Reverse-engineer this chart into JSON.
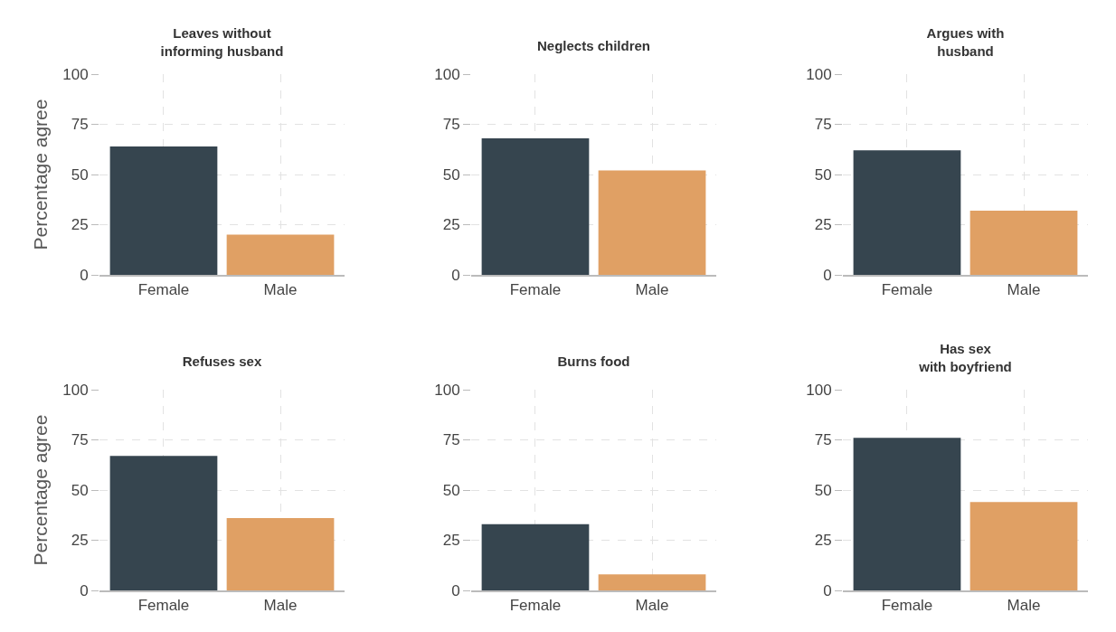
{
  "chart_data": [
    {
      "type": "bar",
      "title": "Leaves without\ninforming husband",
      "ylabel": "Percentage agree",
      "categories": [
        "Female",
        "Male"
      ],
      "values": [
        64,
        20
      ],
      "colors": [
        "#36454f",
        "#e0a064"
      ],
      "ylim": [
        0,
        100
      ],
      "yticks": [
        0,
        25,
        50,
        75,
        100
      ],
      "grid": true
    },
    {
      "type": "bar",
      "title": "Neglects children",
      "categories": [
        "Female",
        "Male"
      ],
      "values": [
        68,
        52
      ],
      "colors": [
        "#36454f",
        "#e0a064"
      ],
      "ylim": [
        0,
        100
      ],
      "yticks": [
        0,
        25,
        50,
        75,
        100
      ],
      "grid": true
    },
    {
      "type": "bar",
      "title": "Argues with\nhusband",
      "categories": [
        "Female",
        "Male"
      ],
      "values": [
        62,
        32
      ],
      "colors": [
        "#36454f",
        "#e0a064"
      ],
      "ylim": [
        0,
        100
      ],
      "yticks": [
        0,
        25,
        50,
        75,
        100
      ],
      "grid": true
    },
    {
      "type": "bar",
      "title": "Refuses sex",
      "ylabel": "Percentage agree",
      "categories": [
        "Female",
        "Male"
      ],
      "values": [
        67,
        36
      ],
      "colors": [
        "#36454f",
        "#e0a064"
      ],
      "ylim": [
        0,
        100
      ],
      "yticks": [
        0,
        25,
        50,
        75,
        100
      ],
      "grid": true
    },
    {
      "type": "bar",
      "title": "Burns food",
      "categories": [
        "Female",
        "Male"
      ],
      "values": [
        33,
        8
      ],
      "colors": [
        "#36454f",
        "#e0a064"
      ],
      "ylim": [
        0,
        100
      ],
      "yticks": [
        0,
        25,
        50,
        75,
        100
      ],
      "grid": true
    },
    {
      "type": "bar",
      "title": "Has sex\nwith boyfriend",
      "categories": [
        "Female",
        "Male"
      ],
      "values": [
        76,
        44
      ],
      "colors": [
        "#36454f",
        "#e0a064"
      ],
      "ylim": [
        0,
        100
      ],
      "yticks": [
        0,
        25,
        50,
        75,
        100
      ],
      "grid": true
    }
  ]
}
